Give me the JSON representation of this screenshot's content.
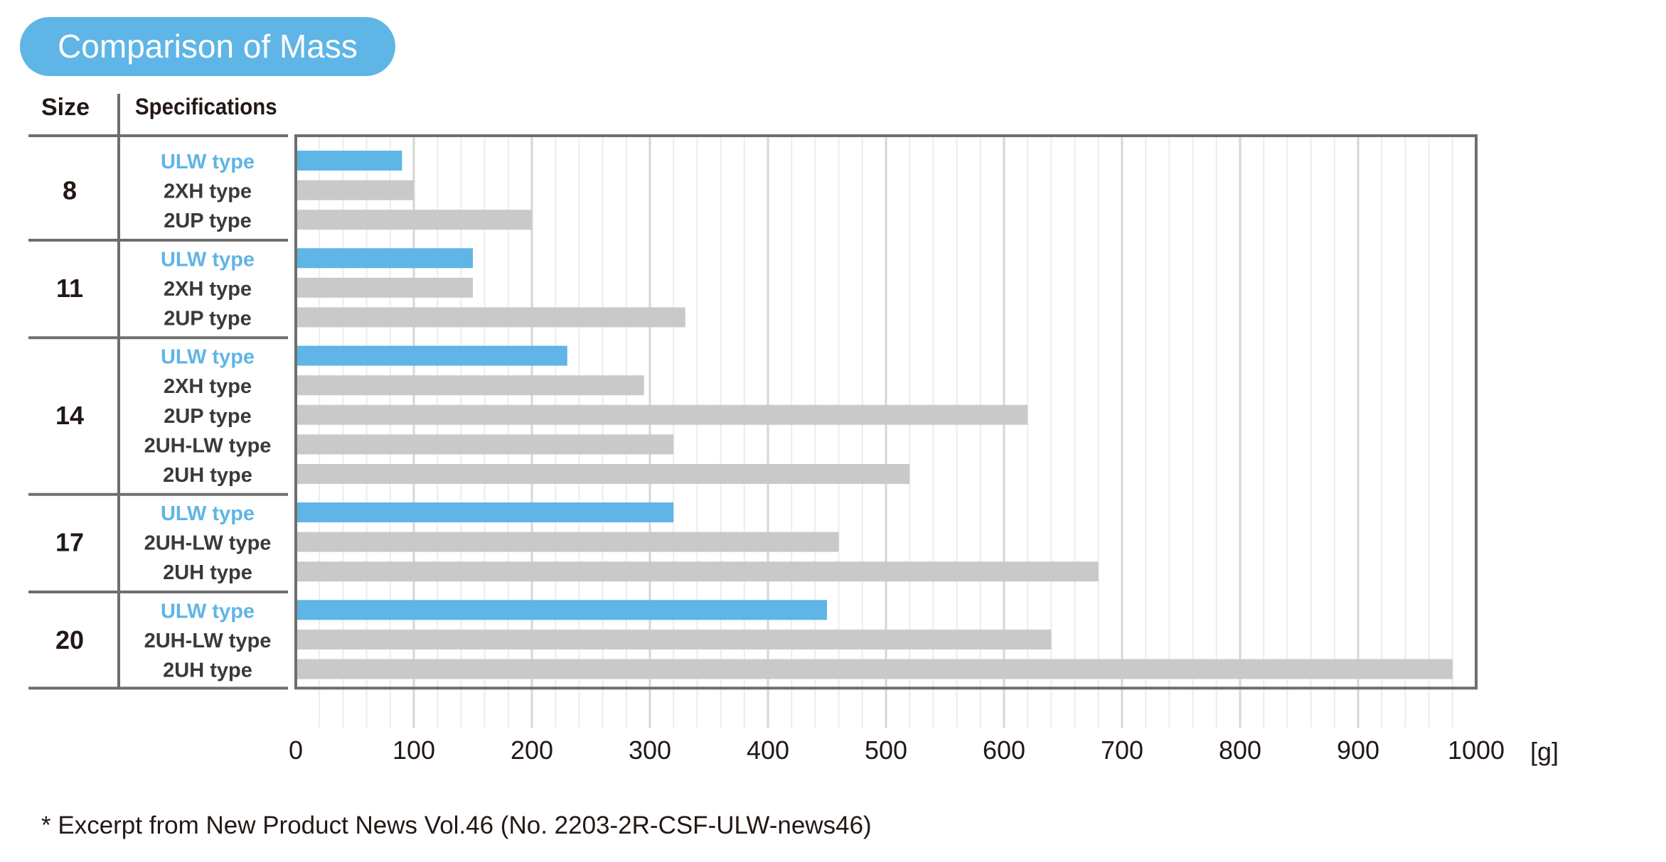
{
  "title": "Comparison of Mass",
  "headers": {
    "size": "Size",
    "specifications": "Specifications"
  },
  "unit": "[g]",
  "footnote": "* Excerpt from New Product News Vol.46 (No. 2203-2R-CSF-ULW-news46)",
  "colors": {
    "highlight": "#5fb5e6",
    "other": "#c9c9c9",
    "highlight_text": "#5fb5e6",
    "grid": "#e0e0e0",
    "frame": "#6e6e6e"
  },
  "chart_data": {
    "type": "bar",
    "orientation": "horizontal",
    "xlim": [
      0,
      1000
    ],
    "xticks": [
      "0",
      "100",
      "200",
      "300",
      "400",
      "500",
      "600",
      "700",
      "800",
      "900",
      "1000"
    ],
    "grid": true,
    "groups": [
      {
        "size": "8",
        "bars": [
          {
            "label": "ULW type",
            "value": 90,
            "highlight": true
          },
          {
            "label": "2XH type",
            "value": 100,
            "highlight": false
          },
          {
            "label": "2UP type",
            "value": 200,
            "highlight": false
          }
        ]
      },
      {
        "size": "11",
        "bars": [
          {
            "label": "ULW type",
            "value": 150,
            "highlight": true
          },
          {
            "label": "2XH type",
            "value": 150,
            "highlight": false
          },
          {
            "label": "2UP type",
            "value": 330,
            "highlight": false
          }
        ]
      },
      {
        "size": "14",
        "bars": [
          {
            "label": "ULW type",
            "value": 230,
            "highlight": true
          },
          {
            "label": "2XH type",
            "value": 295,
            "highlight": false
          },
          {
            "label": "2UP type",
            "value": 620,
            "highlight": false
          },
          {
            "label": "2UH-LW type",
            "value": 320,
            "highlight": false
          },
          {
            "label": "2UH type",
            "value": 520,
            "highlight": false
          }
        ]
      },
      {
        "size": "17",
        "bars": [
          {
            "label": "ULW type",
            "value": 320,
            "highlight": true
          },
          {
            "label": "2UH-LW type",
            "value": 460,
            "highlight": false
          },
          {
            "label": "2UH type",
            "value": 680,
            "highlight": false
          }
        ]
      },
      {
        "size": "20",
        "bars": [
          {
            "label": "ULW type",
            "value": 450,
            "highlight": true
          },
          {
            "label": "2UH-LW type",
            "value": 640,
            "highlight": false
          },
          {
            "label": "2UH type",
            "value": 980,
            "highlight": false
          }
        ]
      }
    ]
  }
}
